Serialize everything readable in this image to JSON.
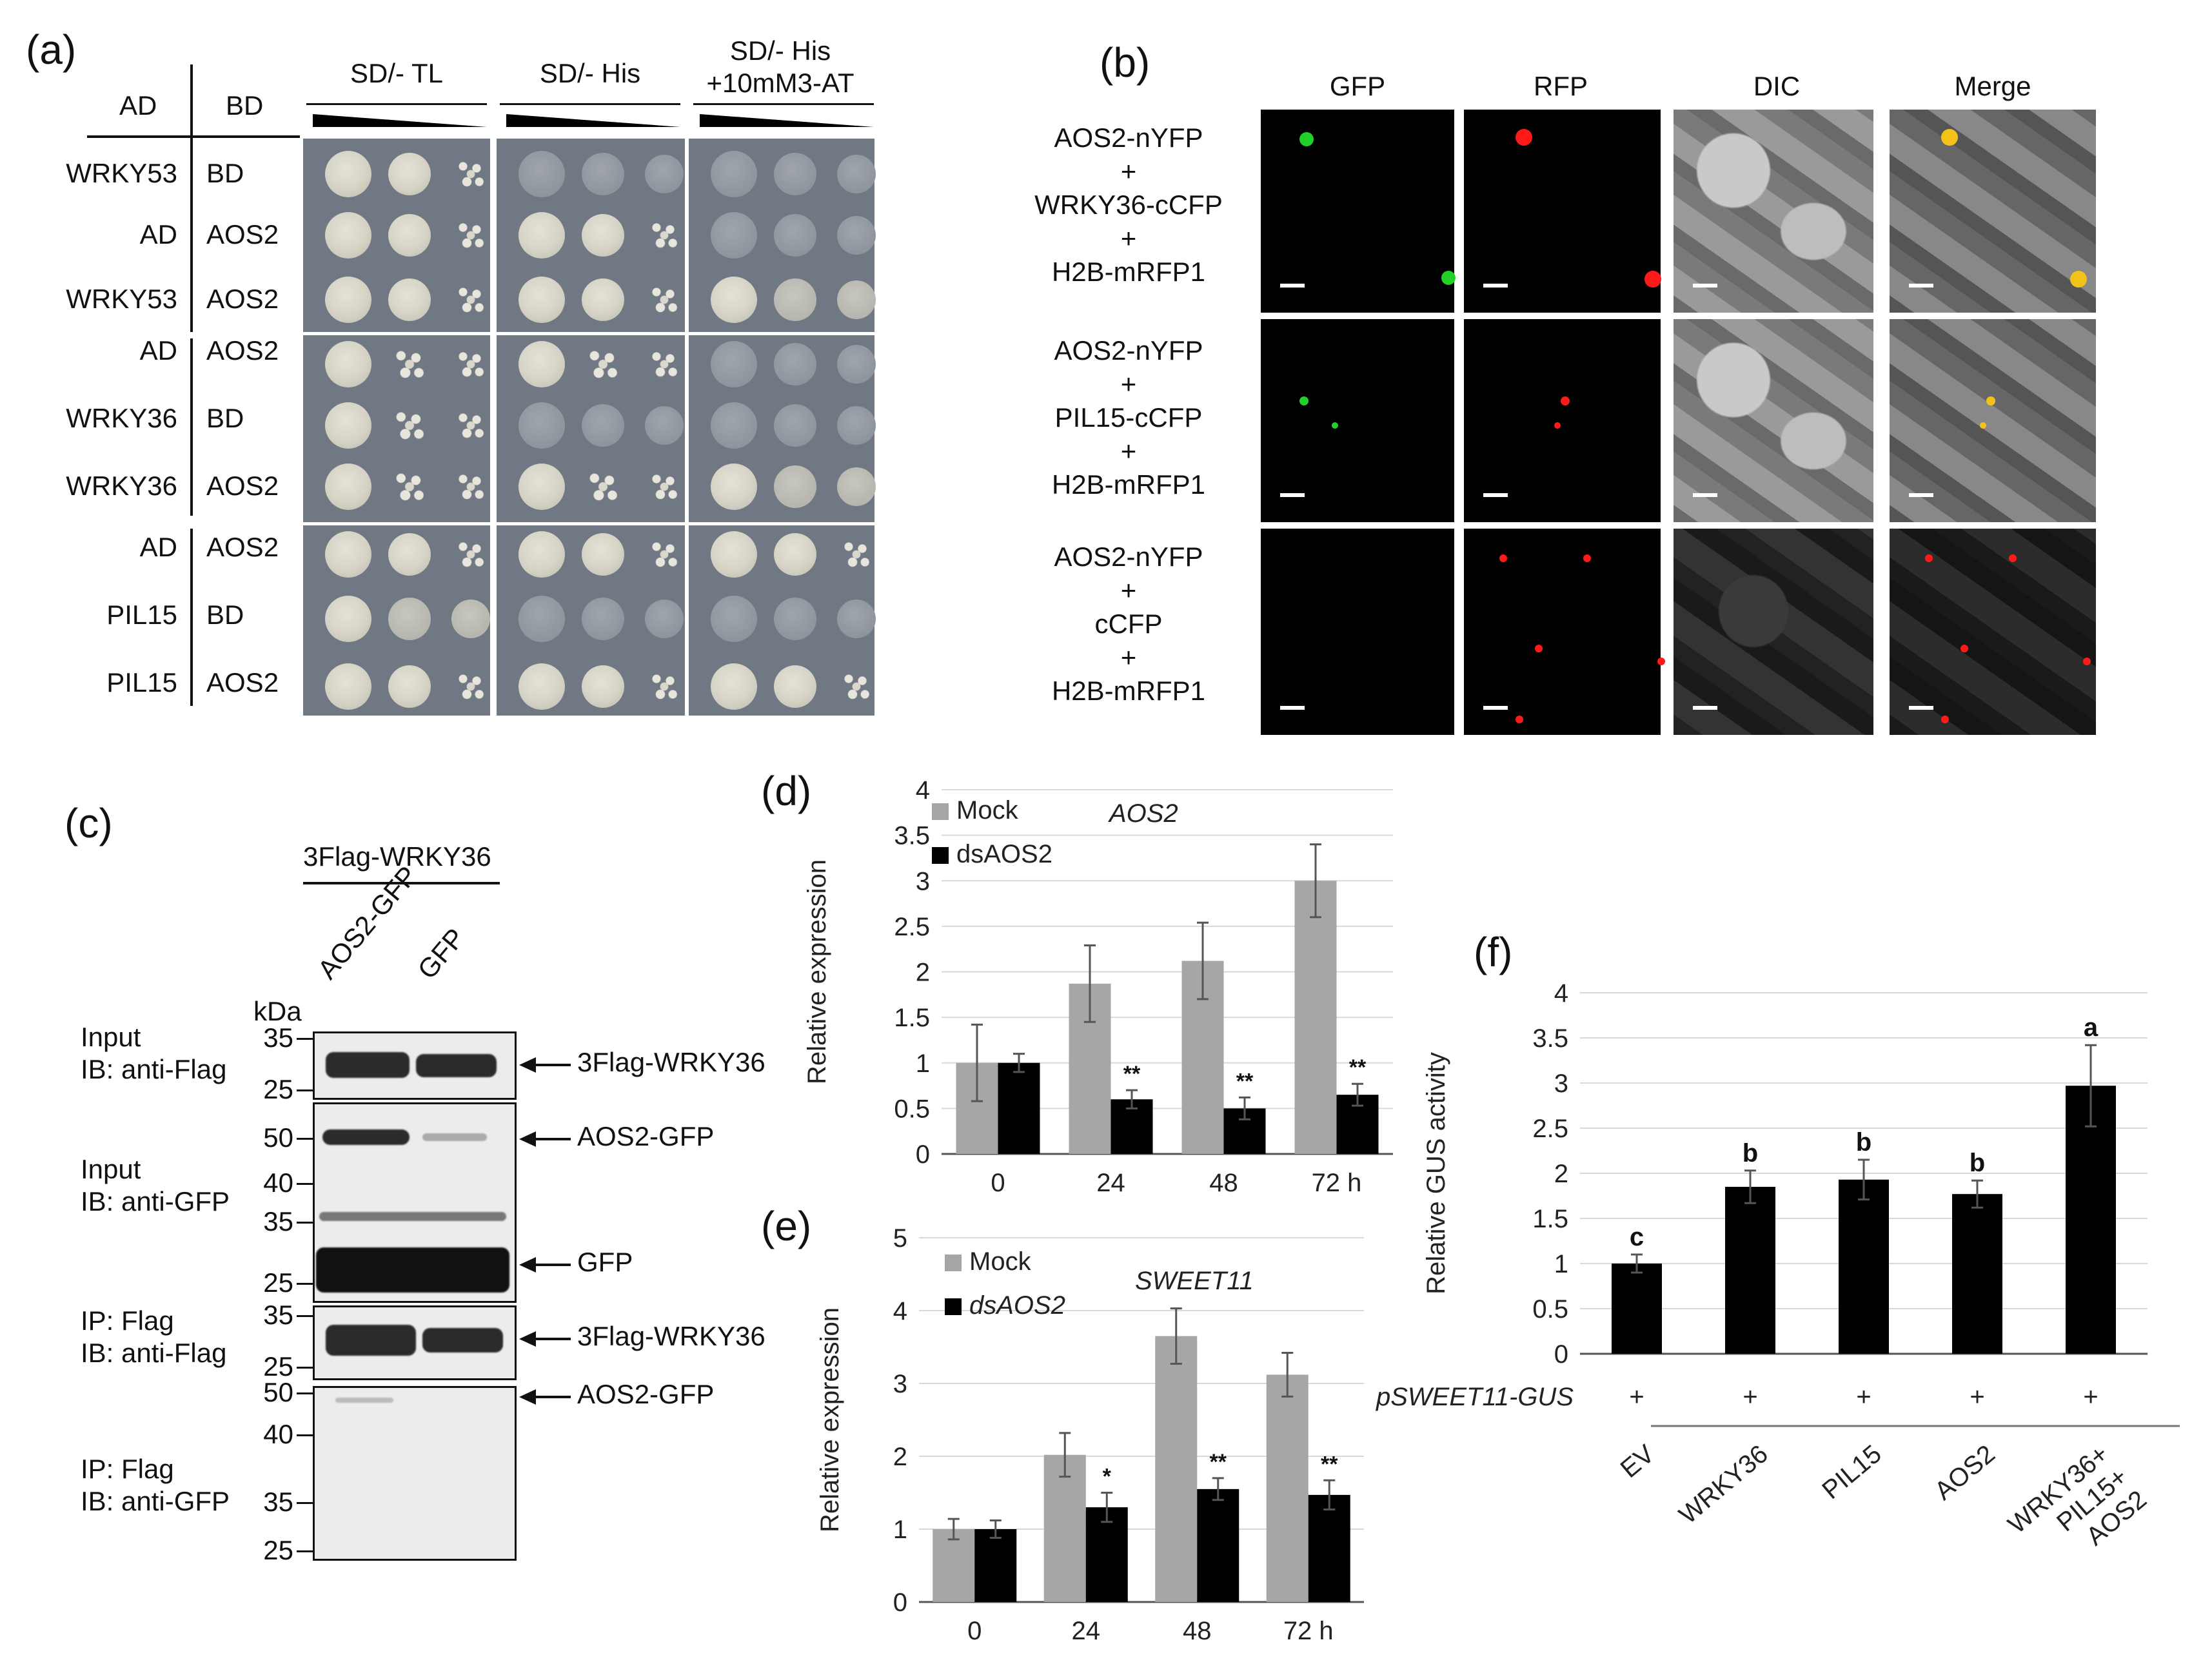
{
  "panels": {
    "a": {
      "label": "(a)",
      "col_ad": "AD",
      "col_bd": "BD",
      "media": [
        "SD/- TL",
        "SD/- His",
        "SD/- His\n+10mM3-AT"
      ],
      "media_line1": [
        "SD/- TL",
        "SD/- His",
        "SD/- His"
      ],
      "media_line2": [
        "",
        "",
        "+10mM3-AT"
      ],
      "rows": [
        {
          "ad": "WRKY53",
          "bd": "BD"
        },
        {
          "ad": "AD",
          "bd": "AOS2"
        },
        {
          "ad": "WRKY53",
          "bd": "AOS2"
        },
        {
          "ad": "AD",
          "bd": "AOS2"
        },
        {
          "ad": "WRKY36",
          "bd": "BD"
        },
        {
          "ad": "WRKY36",
          "bd": "AOS2"
        },
        {
          "ad": "AD",
          "bd": "AOS2"
        },
        {
          "ad": "PIL15",
          "bd": "BD"
        },
        {
          "ad": "PIL15",
          "bd": "AOS2"
        }
      ]
    },
    "b": {
      "label": "(b)",
      "columns": [
        "GFP",
        "RFP",
        "DIC",
        "Merge"
      ],
      "rows": [
        {
          "lines": [
            "AOS2-nYFP",
            "+",
            "WRKY36-cCFP",
            "+",
            "H2B-mRFP1"
          ]
        },
        {
          "lines": [
            "AOS2-nYFP",
            "+",
            "PIL15-cCFP",
            "+",
            "H2B-mRFP1"
          ]
        },
        {
          "lines": [
            "AOS2-nYFP",
            "+",
            "cCFP",
            "+",
            "H2B-mRFP1"
          ]
        }
      ],
      "colors": {
        "gfp": "#22d02a",
        "rfp": "#ff1a1a",
        "merge": "#f2c21a"
      }
    },
    "c": {
      "label": "(c)",
      "bait": "3Flag-WRKY36",
      "lanes": [
        "AOS2-GFP",
        "GFP"
      ],
      "kda": "kDa",
      "blots": [
        {
          "line1": "Input",
          "line2": "IB: anti-Flag",
          "markers": [
            "35",
            "25"
          ],
          "bands": [
            "3Flag-WRKY36"
          ]
        },
        {
          "line1": "Input",
          "line2": "IB: anti-GFP",
          "markers": [
            "50",
            "40",
            "35",
            "25"
          ],
          "bands": [
            "AOS2-GFP",
            "GFP"
          ]
        },
        {
          "line1": "IP: Flag",
          "line2": "IB: anti-Flag",
          "markers": [
            "35",
            "25"
          ],
          "bands": [
            "3Flag-WRKY36"
          ]
        },
        {
          "line1": "IP: Flag",
          "line2": "IB: anti-GFP",
          "markers": [
            "50",
            "40",
            "35",
            "25"
          ],
          "bands": [
            "AOS2-GFP"
          ]
        }
      ]
    },
    "d": {
      "label": "(d)"
    },
    "e": {
      "label": "(e)"
    },
    "f": {
      "label": "(f)"
    }
  },
  "chart_data": [
    {
      "id": "d",
      "type": "bar",
      "title": "AOS2",
      "ylabel": "Relative expression",
      "categories": [
        "0",
        "24",
        "48",
        "72 h"
      ],
      "ylim": [
        0,
        4
      ],
      "yticks": [
        "0",
        "0.5",
        "1",
        "1.5",
        "2",
        "2.5",
        "3",
        "3.5",
        "4"
      ],
      "series": [
        {
          "name": "Mock",
          "color": "#a6a6a6",
          "values": [
            1.0,
            1.87,
            2.12,
            3.0
          ],
          "errors": [
            0.42,
            0.42,
            0.42,
            0.4
          ],
          "marks": [
            "",
            "",
            "",
            ""
          ]
        },
        {
          "name": "dsAOS2",
          "color": "#000000",
          "values": [
            1.0,
            0.6,
            0.5,
            0.65
          ],
          "errors": [
            0.1,
            0.1,
            0.12,
            0.12
          ],
          "marks": [
            "",
            "**",
            "**",
            "**"
          ]
        }
      ],
      "grid": true,
      "legend": "top-left"
    },
    {
      "id": "e",
      "type": "bar",
      "title": "SWEET11",
      "ylabel": "Relative expression",
      "categories": [
        "0",
        "24",
        "48",
        "72 h"
      ],
      "ylim": [
        0,
        5
      ],
      "yticks": [
        "0",
        "1",
        "2",
        "3",
        "4",
        "5"
      ],
      "series": [
        {
          "name": "Mock",
          "color": "#a6a6a6",
          "values": [
            1.0,
            2.02,
            3.65,
            3.12
          ],
          "errors": [
            0.14,
            0.3,
            0.38,
            0.3
          ],
          "marks": [
            "",
            "",
            "",
            ""
          ]
        },
        {
          "name": "dsAOS2",
          "color": "#000000",
          "values": [
            1.0,
            1.3,
            1.55,
            1.47
          ],
          "errors": [
            0.12,
            0.2,
            0.15,
            0.2
          ],
          "marks": [
            "",
            "*",
            "**",
            "**"
          ]
        }
      ],
      "grid": true,
      "legend": "top-left"
    },
    {
      "id": "f",
      "type": "bar",
      "title": "",
      "ylabel": "Relative GUS activity",
      "categories": [
        "EV",
        "WRKY36",
        "PIL15",
        "AOS2",
        "WRKY36+\nPIL15+\nAOS2"
      ],
      "ylim": [
        0,
        4
      ],
      "yticks": [
        "0",
        "0.5",
        "1",
        "1.5",
        "2",
        "2.5",
        "3",
        "3.5",
        "4"
      ],
      "series": [
        {
          "name": "",
          "color": "#000000",
          "values": [
            1.0,
            1.85,
            1.93,
            1.77,
            2.97
          ],
          "errors": [
            0.1,
            0.18,
            0.22,
            0.15,
            0.45
          ],
          "marks": [
            "c",
            "b",
            "b",
            "b",
            "a"
          ]
        }
      ],
      "reporter": "pSWEET11-GUS",
      "reporter_marks": [
        "+",
        "+",
        "+",
        "+",
        "+"
      ],
      "grid": true
    }
  ]
}
